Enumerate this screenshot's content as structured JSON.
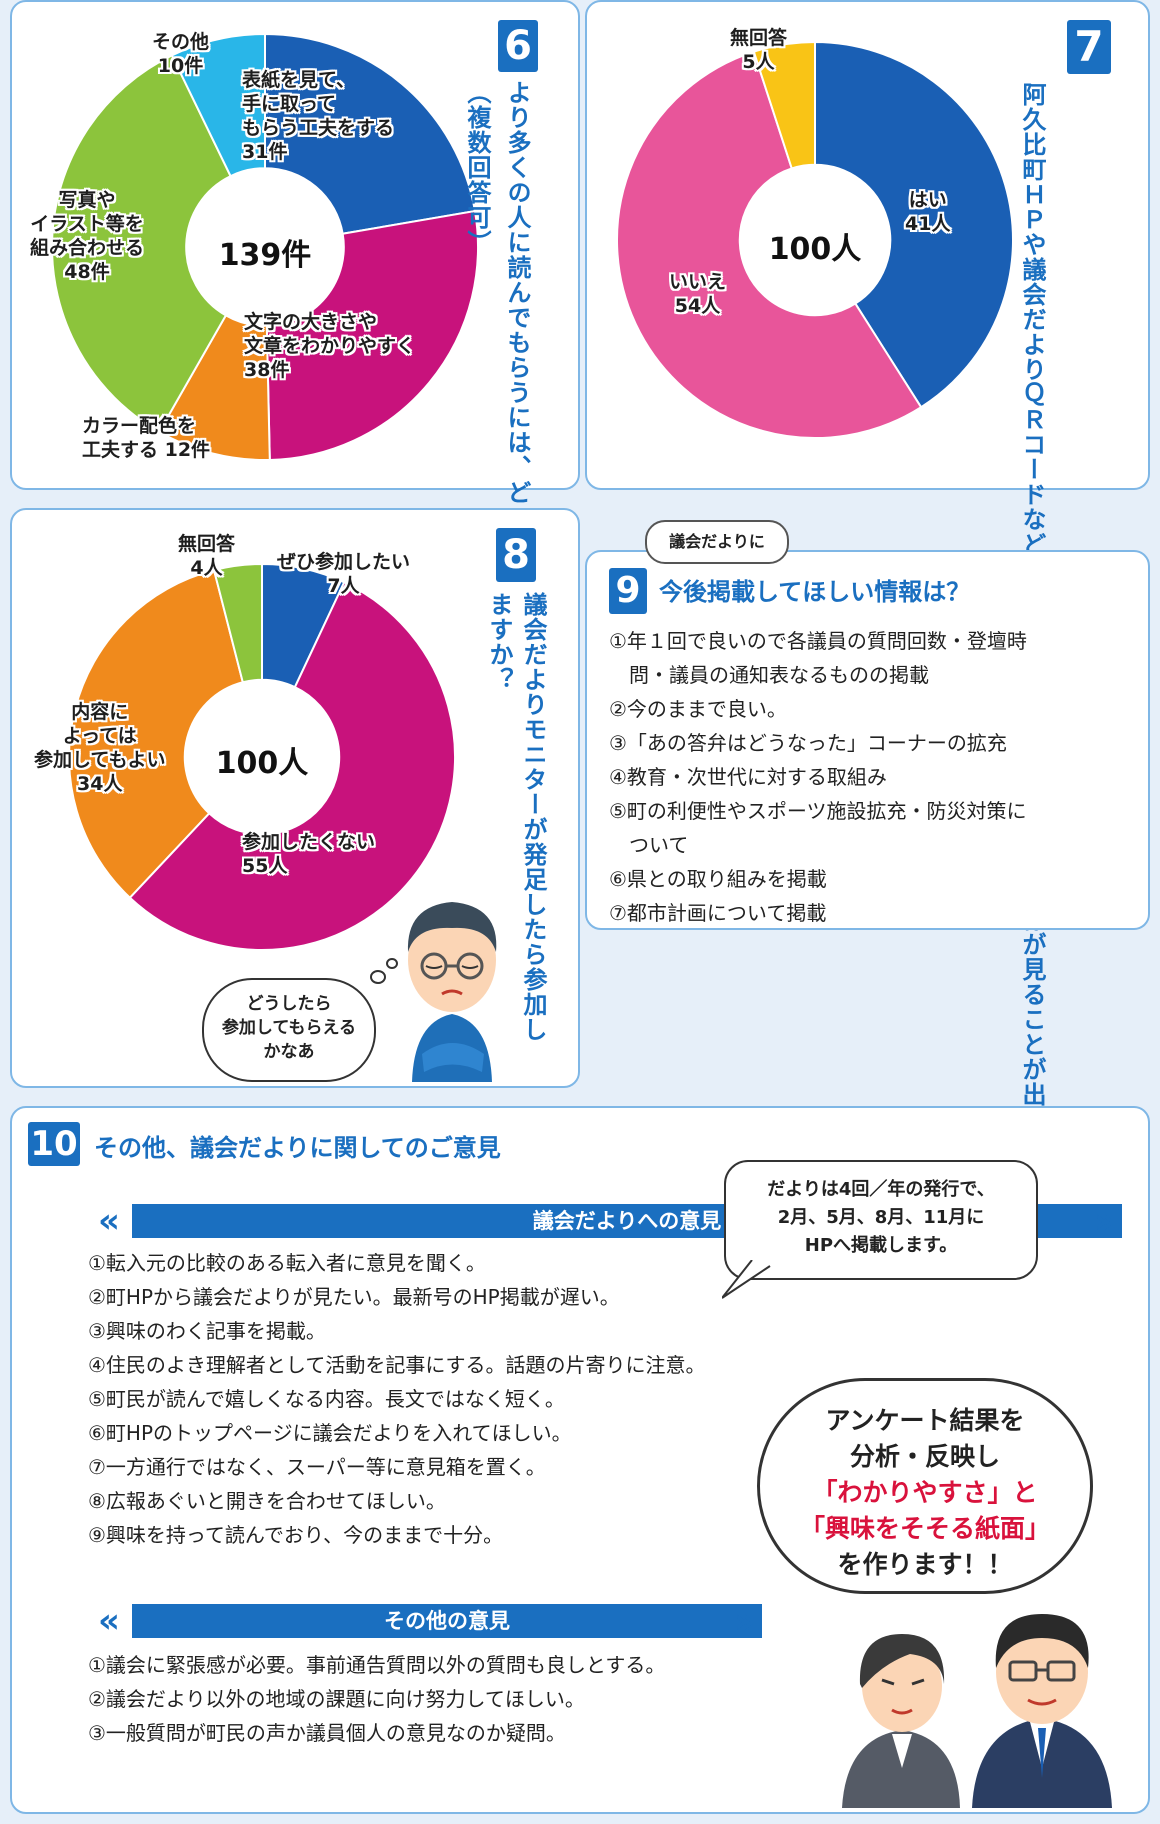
{
  "q6": {
    "num": "6",
    "title": "より多くの人に読んでもらうには、どのような工夫が必要か？",
    "subtitle": "（複数回答可）",
    "center": "139件"
  },
  "q7": {
    "num": "7",
    "title": "阿久比町ＨＰや議会だよりＱＲコードなどから各議員の一般質問の録画映像が見ることが出来たら視聴しますか？",
    "center": "100人"
  },
  "q8": {
    "num": "8",
    "title": "議会だよりモニターが発足したら参加しますか？",
    "center": "100人",
    "thought": "どうしたら\n参加してもらえる\nかなあ"
  },
  "q9": {
    "num": "9",
    "tag": "議会だよりに",
    "title": "今後掲載してほしい情報は？",
    "items": [
      "①年１回で良いので各議員の質問回数・登壇時",
      "　問・議員の通知表なるものの掲載",
      "②今のままで良い。",
      "③「あの答弁はどうなった」コーナーの拡充",
      "④教育・次世代に対する取組み",
      "⑤町の利便性やスポーツ施設拡充・防災対策に",
      "　ついて",
      "⑥県との取り組みを掲載",
      "⑦都市計画について掲載"
    ]
  },
  "q10": {
    "num": "10",
    "title": "その他、議会だよりに関してのご意見",
    "section1": "議会だよりへの意見",
    "items1": [
      "①転入元の比較のある転入者に意見を聞く。",
      "②町HPから議会だよりが見たい。最新号のHP掲載が遅い。",
      "③興味のわく記事を掲載。",
      "④住民のよき理解者として活動を記事にする。話題の片寄りに注意。",
      "⑤町民が読んで嬉しくなる内容。長文ではなく短く。",
      "⑥町HPのトップページに議会だよりを入れてほしい。",
      "⑦一方通行ではなく、スーパー等に意見箱を置く。",
      "⑧広報あぐいと開きを合わせてほしい。",
      "⑨興味を持って読んでおり、今のままで十分。"
    ],
    "section2": "その他の意見",
    "items2": [
      "①議会に緊張感が必要。事前通告質問以外の質問も良しとする。",
      "②議会だより以外の地域の課題に向け努力してほしい。",
      "③一般質問が町民の声か議員個人の意見なのか疑問。"
    ],
    "callout1": "だよりは4回／年の発行で、\n2月、5月、8月、11月に\nHPへ掲載します。",
    "callout2_line1": "アンケート結果を",
    "callout2_line2": "分析・反映し",
    "callout2_line3": "「わかりやすさ」と",
    "callout2_line4": "「興味をそそる紙面」",
    "callout2_line5": "を作ります！！"
  },
  "chart_data": [
    {
      "type": "pie",
      "categories": [
        "表紙を見て、手に取ってもらう工夫をする",
        "文字の大きさや文章をわかりやすく",
        "カラー配色を工夫する",
        "写真やイラスト等を組み合わせる",
        "その他"
      ],
      "values": [
        31,
        38,
        12,
        48,
        10
      ],
      "labels": [
        "表紙を見て、\n手に取って\nもらう工夫をする\n31件",
        "文字の大きさや\n文章をわかりやすく\n38件",
        "カラー配色を\n工夫する 12件",
        "写真や\nイラスト等を\n組み合わせる\n48件",
        "その他\n10件"
      ],
      "colors": [
        "#1a5fb4",
        "#c8127c",
        "#f08a1c",
        "#8cc43c",
        "#29b6e8"
      ],
      "total": "139件"
    },
    {
      "type": "pie",
      "categories": [
        "はい",
        "いいえ",
        "無回答"
      ],
      "values": [
        41,
        54,
        5
      ],
      "labels": [
        "はい\n41人",
        "いいえ\n54人",
        "無回答\n5人"
      ],
      "colors": [
        "#1a5fb4",
        "#e8559a",
        "#f9c416"
      ],
      "total": "100人"
    },
    {
      "type": "pie",
      "categories": [
        "ぜひ参加したい",
        "参加したくない",
        "内容によっては参加してもよい",
        "無回答"
      ],
      "values": [
        7,
        55,
        34,
        4
      ],
      "labels": [
        "ぜひ参加したい\n7人",
        "参加したくない\n55人",
        "内容に\nよっては\n参加してもよい\n34人",
        "無回答\n4人"
      ],
      "colors": [
        "#1a5fb4",
        "#c8127c",
        "#f08a1c",
        "#8cc43c"
      ],
      "total": "100人"
    }
  ]
}
